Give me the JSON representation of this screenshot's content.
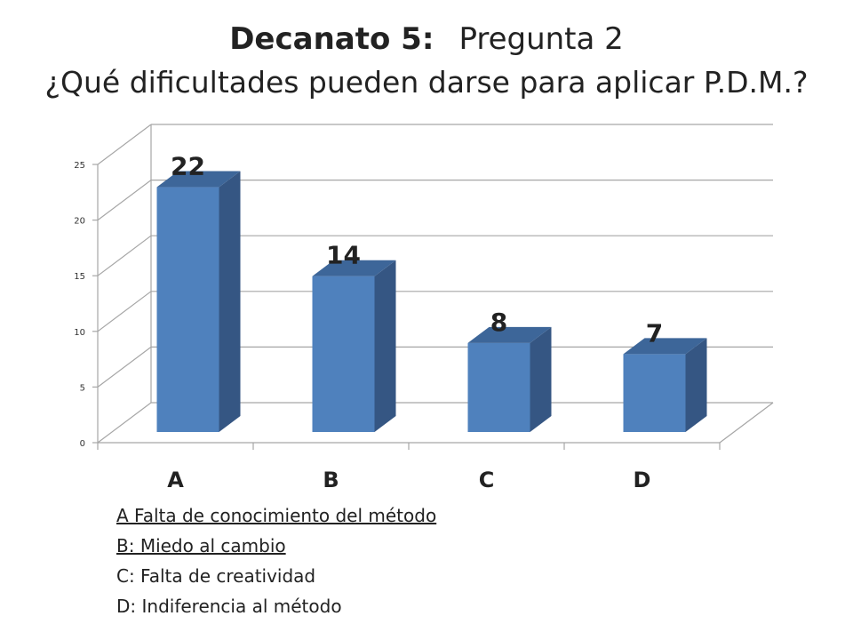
{
  "title": {
    "bold": "Decanato 5:",
    "normal": "Pregunta 2",
    "subtitle": "¿Qué dificultades pueden darse para aplicar P.D.M.?"
  },
  "chart_data": {
    "type": "bar",
    "categories": [
      "A",
      "B",
      "C",
      "D"
    ],
    "values": [
      22,
      14,
      8,
      7
    ],
    "ylim": [
      0,
      25
    ],
    "yticks": [
      0,
      5,
      10,
      15,
      20,
      25
    ],
    "grid": true,
    "three_d": true
  },
  "legend": {
    "items": [
      {
        "text": "A Falta de conocimiento del método",
        "underlined": true
      },
      {
        "text": "B: Miedo al cambio",
        "underlined": true
      },
      {
        "text": "C: Falta de creatividad",
        "underlined": false
      },
      {
        "text": "D: Indiferencia  al método",
        "underlined": false
      }
    ]
  },
  "colors": {
    "bar_front": "#4f81bd",
    "bar_side": "#355683",
    "bar_top": "#3d6699",
    "grid": "#a6a6a6"
  }
}
